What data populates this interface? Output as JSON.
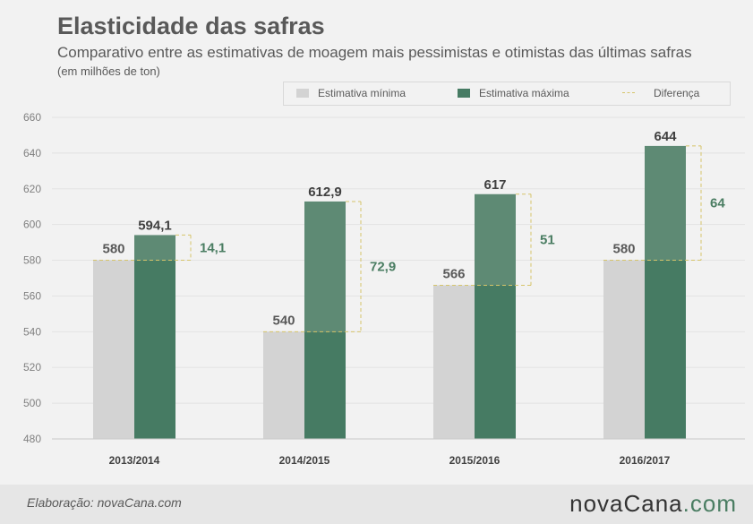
{
  "header": {
    "title": "Elasticidade das safras",
    "subtitle": "Comparativo entre as estimativas de moagem mais pessimistas e otimistas das últimas safras",
    "unit_note": "(em milhões de ton)"
  },
  "legend": {
    "min_label": "Estimativa mínima",
    "max_label": "Estimativa máxima",
    "diff_label": "Diferença"
  },
  "colors": {
    "min": "#d3d3d3",
    "max_base": "#467b63",
    "max_top": "#5e8a74",
    "diff_line": "#d6c46a",
    "diff_text": "#4a7d62",
    "axis_text": "#808080",
    "label_text": "#404040"
  },
  "chart_data": {
    "type": "bar",
    "categories": [
      "2013/2014",
      "2014/2015",
      "2015/2016",
      "2016/2017"
    ],
    "series": [
      {
        "name": "Estimativa mínima",
        "values": [
          580,
          540,
          566,
          580
        ],
        "labels": [
          "580",
          "540",
          "566",
          "580"
        ]
      },
      {
        "name": "Estimativa máxima",
        "values": [
          594.1,
          612.9,
          617,
          644
        ],
        "labels": [
          "594,1",
          "612,9",
          "617",
          "644"
        ]
      },
      {
        "name": "Diferença",
        "values": [
          14.1,
          72.9,
          51,
          64
        ],
        "labels": [
          "14,1",
          "72,9",
          "51",
          "64"
        ]
      }
    ],
    "ylim": [
      480,
      660
    ],
    "yticks": [
      480,
      500,
      520,
      540,
      560,
      580,
      600,
      620,
      640,
      660
    ],
    "grid": true,
    "legend_position": "top-right"
  },
  "footer": {
    "credit": "Elaboração: novaCana.com",
    "brand_name": "novaCana",
    "brand_suffix": ".com"
  }
}
